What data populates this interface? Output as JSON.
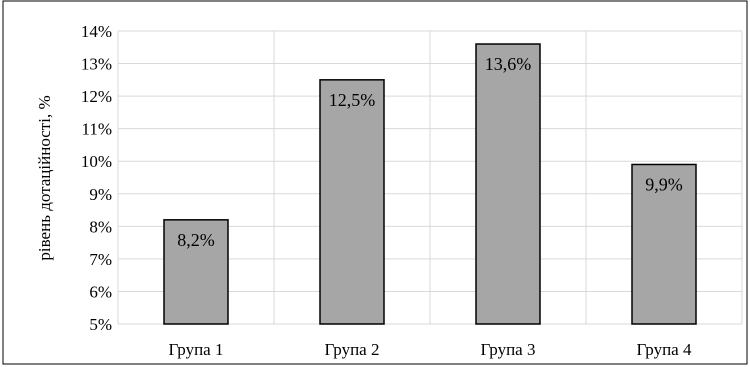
{
  "chart_data": {
    "type": "bar",
    "categories": [
      "Група 1",
      "Група 2",
      "Група 3",
      "Група 4"
    ],
    "values": [
      8.2,
      12.5,
      13.6,
      9.9
    ],
    "data_labels": [
      "8,2%",
      "12,5%",
      "13,6%",
      "9,9%"
    ],
    "ylabel": "рівень дотаційності, %",
    "xlabel": "",
    "ylim": [
      5,
      14
    ],
    "yticks": [
      5,
      6,
      7,
      8,
      9,
      10,
      11,
      12,
      13,
      14
    ],
    "ytick_labels": [
      "5%",
      "6%",
      "7%",
      "8%",
      "9%",
      "10%",
      "11%",
      "12%",
      "13%",
      "14%"
    ],
    "grid": true,
    "legend": "none",
    "colors": {
      "bar_fill": "#a6a6a6",
      "bar_stroke": "#000000",
      "grid": "#d9d9d9",
      "frame": "#000000"
    }
  }
}
